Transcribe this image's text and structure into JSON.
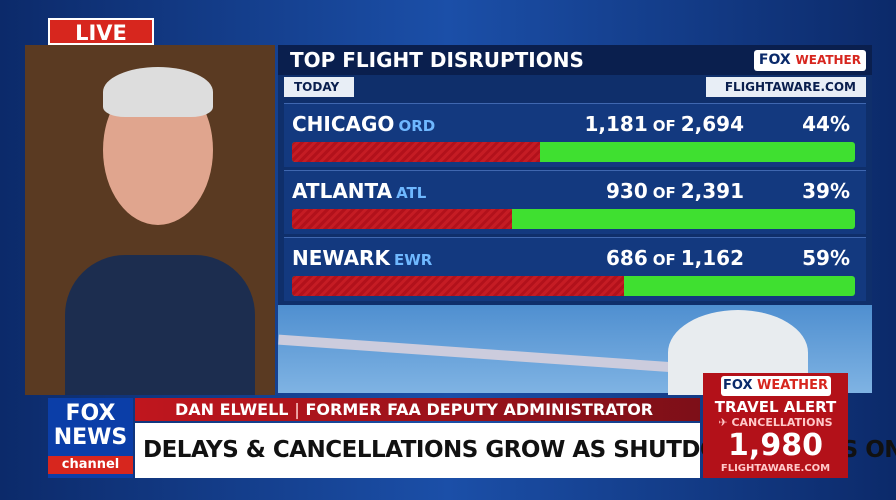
{
  "live": "LIVE",
  "panel": {
    "title": "TOP FLIGHT DISRUPTIONS",
    "logo": {
      "fox": "FOX",
      "weather": "WEATHER"
    },
    "period": "TODAY",
    "source": "FLIGHTAWARE.COM",
    "rows": [
      {
        "city": "CHICAGO",
        "code": "ORD",
        "delayed": "1,181",
        "of": "OF",
        "total": "2,694",
        "percent": {
          "value": 44,
          "label": "44%"
        }
      },
      {
        "city": "ATLANTA",
        "code": "ATL",
        "delayed": "930",
        "of": "OF",
        "total": "2,391",
        "percent": {
          "value": 39,
          "label": "39%"
        }
      },
      {
        "city": "NEWARK",
        "code": "EWR",
        "delayed": "686",
        "of": "OF",
        "total": "1,162",
        "percent": {
          "value": 59,
          "label": "59%"
        }
      }
    ]
  },
  "network": {
    "line1": "FOX",
    "line2": "NEWS",
    "line3": "channel"
  },
  "lower_third": {
    "name": "DAN ELWELL",
    "separator": "|",
    "role": "FORMER FAA DEPUTY ADMINISTRATOR",
    "headline": "DELAYS & CANCELLATIONS GROW AS SHUTDOWN DRAGS ON"
  },
  "alert": {
    "logo": {
      "fox": "FOX",
      "weather": "WEATHER"
    },
    "title": "TRAVEL ALERT",
    "subtitle": "✈ CANCELLATIONS",
    "count": "1,980",
    "source": "FLIGHTAWARE.COM"
  }
}
